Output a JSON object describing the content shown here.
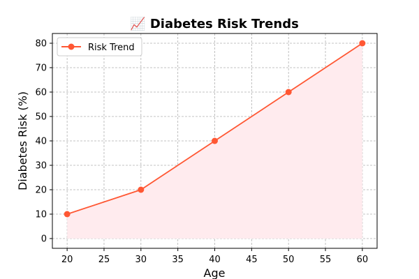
{
  "chart_data": {
    "type": "line",
    "title": "📈 Diabetes Risk Trends",
    "xlabel": "Age",
    "ylabel": "Diabetes Risk (%)",
    "x": [
      20,
      30,
      40,
      50,
      60
    ],
    "series": [
      {
        "name": "Risk Trend",
        "values": [
          10,
          20,
          40,
          60,
          80
        ],
        "color": "#FF5733",
        "fill_color": "#FFEBEE",
        "marker": "circle"
      }
    ],
    "xlim": [
      18,
      62
    ],
    "ylim": [
      -4,
      84
    ],
    "xticks": [
      20,
      25,
      30,
      35,
      40,
      45,
      50,
      55,
      60
    ],
    "yticks": [
      0,
      10,
      20,
      30,
      40,
      50,
      60,
      70,
      80
    ],
    "grid": true,
    "grid_style": "dashed",
    "legend_position": "top-left",
    "fill_under": true
  }
}
